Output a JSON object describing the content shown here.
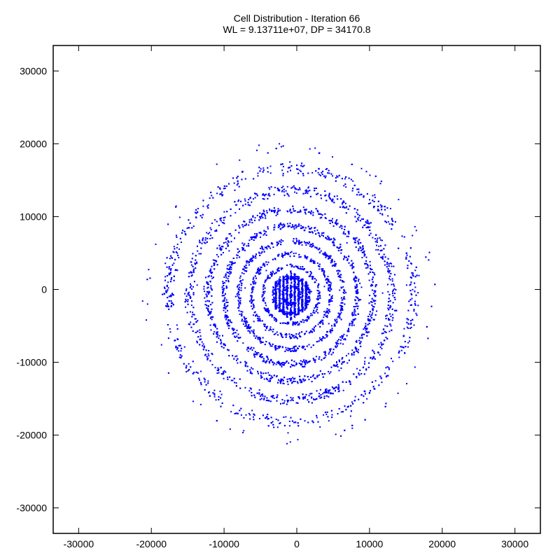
{
  "chart_data": {
    "type": "scatter",
    "title": "Cell Distribution - Iteration 66",
    "subtitle": "WL = 9.13711e+07, DP = 34170.8",
    "xlabel": "",
    "ylabel": "",
    "xlim": [
      -33500,
      33500
    ],
    "ylim": [
      -33500,
      33500
    ],
    "x_ticks": [
      -30000,
      -20000,
      -10000,
      0,
      10000,
      20000,
      30000
    ],
    "y_ticks": [
      -30000,
      -20000,
      -10000,
      0,
      10000,
      20000,
      30000
    ],
    "x_tick_labels": [
      "-30000",
      "-20000",
      "-10000",
      "0",
      "10000",
      "20000",
      "30000"
    ],
    "y_tick_labels": [
      "-30000",
      "-20000",
      "-10000",
      "0",
      "10000",
      "20000",
      "30000"
    ],
    "grid": false,
    "legend": "none",
    "point_color": "#0000ff",
    "distribution_center": [
      -800,
      -800
    ],
    "distribution_extent": {
      "x_min": -21500,
      "x_max": 17000,
      "y_min": -19800,
      "y_max": 20000
    },
    "points": [
      [
        -1800,
        200
      ],
      [
        -1500,
        -600
      ],
      [
        -1200,
        900
      ],
      [
        -900,
        -1200
      ],
      [
        -700,
        300
      ],
      [
        -400,
        1400
      ],
      [
        -200,
        -300
      ],
      [
        100,
        700
      ],
      [
        300,
        -900
      ],
      [
        500,
        1200
      ],
      [
        800,
        -200
      ],
      [
        1100,
        500
      ],
      [
        -2300,
        1700
      ],
      [
        -2100,
        -1900
      ],
      [
        1400,
        -1500
      ],
      [
        1700,
        1800
      ],
      [
        -2600,
        100
      ],
      [
        2000,
        -300
      ],
      [
        -4200,
        2600
      ],
      [
        -3800,
        -2900
      ],
      [
        3100,
        2800
      ],
      [
        2900,
        -3200
      ],
      [
        -4600,
        -300
      ],
      [
        3800,
        400
      ],
      [
        -6200,
        4100
      ],
      [
        -5900,
        -4400
      ],
      [
        4600,
        4300
      ],
      [
        4400,
        -4700
      ],
      [
        -7100,
        200
      ],
      [
        5900,
        -100
      ],
      [
        -9300,
        5300
      ],
      [
        -8800,
        -6100
      ],
      [
        6900,
        6400
      ],
      [
        6700,
        -6900
      ],
      [
        -10200,
        -400
      ],
      [
        8900,
        300
      ],
      [
        -12400,
        7800
      ],
      [
        -11600,
        -8900
      ],
      [
        9800,
        8600
      ],
      [
        9400,
        -9400
      ],
      [
        -13700,
        600
      ],
      [
        11800,
        -500
      ],
      [
        -16100,
        9900
      ],
      [
        -15200,
        -11300
      ],
      [
        12900,
        11100
      ],
      [
        12300,
        -12000
      ],
      [
        -18200,
        300
      ],
      [
        15100,
        600
      ],
      [
        -19400,
        6200
      ],
      [
        -18600,
        -7600
      ],
      [
        15900,
        7400
      ],
      [
        15300,
        -7900
      ],
      [
        -20700,
        -4200
      ],
      [
        16800,
        1900
      ],
      [
        -5200,
        19800
      ],
      [
        -2400,
        20000
      ],
      [
        1800,
        19300
      ],
      [
        -7300,
        -19400
      ],
      [
        -1200,
        -19700
      ],
      [
        3200,
        -18900
      ],
      [
        -11000,
        17200
      ],
      [
        8900,
        16600
      ],
      [
        -13200,
        -15800
      ],
      [
        7400,
        -17400
      ],
      [
        -21200,
        -1600
      ],
      [
        16400,
        -3300
      ]
    ]
  }
}
